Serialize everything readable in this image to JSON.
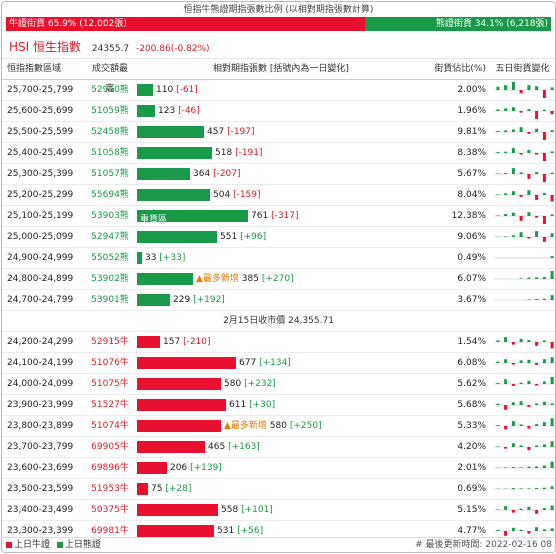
{
  "ratio": {
    "title": "恒指牛熊證期指張數比例 (以相對期指張數計算)",
    "bull_label": "牛證街貨 65.9% (12,002張)",
    "bear_label": "熊證街貨 34.1% (6,218張)",
    "bull_fraction": 0.659
  },
  "index": {
    "name": "HSI 恒生指數",
    "value": "24355.7",
    "change": "-200.86(-0.82%)"
  },
  "header": {
    "range": "恒指指數區域",
    "code": "成交額最高",
    "bar": "相對期指張數 [括號內為一日變化]",
    "pct": "街貨佔比(%)",
    "chart": "五日街貨變化"
  },
  "bear_rows": [
    {
      "range": "25,700-25,799",
      "code": "52950熊",
      "value": "110",
      "change": "[-61]",
      "chg_sign": "neg",
      "pct": "2.00%",
      "bar_frac": 0.055,
      "tag": "",
      "spark": [
        1,
        1.5,
        2.5,
        -1,
        1.5,
        1.2,
        -2.5,
        0.8
      ]
    },
    {
      "range": "25,600-25,699",
      "code": "51059熊",
      "value": "123",
      "change": "[-46]",
      "chg_sign": "neg",
      "pct": "1.96%",
      "bar_frac": 0.062,
      "tag": "",
      "spark": [
        0.5,
        0.8,
        1.2,
        -0.5,
        0.6,
        -2.5,
        0.4,
        -1.0
      ]
    },
    {
      "range": "25,500-25,599",
      "code": "52458熊",
      "value": "457",
      "change": "[-197]",
      "chg_sign": "neg",
      "pct": "9.81%",
      "bar_frac": 0.23,
      "tag": "",
      "spark": [
        0.3,
        0.5,
        0.8,
        1.5,
        -0.6,
        1,
        -2.5,
        0.6
      ]
    },
    {
      "range": "25,400-25,499",
      "code": "51058熊",
      "value": "518",
      "change": "[-191]",
      "chg_sign": "neg",
      "pct": "8.38%",
      "bar_frac": 0.26,
      "tag": "",
      "spark": [
        0.3,
        0.4,
        1.5,
        -0.5,
        1,
        -0.5,
        -2.5,
        0.5
      ]
    },
    {
      "range": "25,300-25,399",
      "code": "51057熊",
      "value": "364",
      "change": "[-207]",
      "chg_sign": "neg",
      "pct": "5.67%",
      "bar_frac": 0.183,
      "tag": "",
      "spark": [
        0.2,
        0.3,
        1.8,
        0.5,
        -1.5,
        0.6,
        -2.5,
        0.4
      ]
    },
    {
      "range": "25,200-25,299",
      "code": "55694熊",
      "value": "504",
      "change": "[-159]",
      "chg_sign": "neg",
      "pct": "8.04%",
      "bar_frac": 0.253,
      "tag": "",
      "spark": [
        0.2,
        0.5,
        1.2,
        -0.6,
        1.5,
        -1.5,
        0.6,
        -2
      ]
    },
    {
      "range": "25,100-25,199",
      "code": "53903熊",
      "value": "761",
      "change": "[-317]",
      "chg_sign": "neg",
      "pct": "12.38%",
      "bar_frac": 0.382,
      "tag": "重貨區",
      "spark": [
        0.2,
        0.6,
        1.0,
        -1.5,
        1.2,
        -0.5,
        -2.5,
        0.5
      ]
    },
    {
      "range": "25,000-25,099",
      "code": "52947熊",
      "value": "551",
      "change": "[+96]",
      "chg_sign": "pos",
      "pct": "9.06%",
      "bar_frac": 0.277,
      "tag": "",
      "spark": [
        0.1,
        0.2,
        0.5,
        1.5,
        -0.5,
        1.8,
        -1.5,
        1.2
      ]
    },
    {
      "range": "24,900-24,999",
      "code": "55052熊",
      "value": "33",
      "change": "[+33]",
      "chg_sign": "pos",
      "pct": "0.49%",
      "bar_frac": 0.017,
      "tag": "",
      "spark": [
        0,
        0,
        0,
        0,
        0,
        0,
        0,
        0.6
      ]
    },
    {
      "range": "24,800-24,899",
      "code": "53902熊",
      "value": "385",
      "change": "[+270]",
      "chg_sign": "pos",
      "pct": "6.07%",
      "bar_frac": 0.193,
      "tag": "▲最多新增",
      "spark": [
        0,
        0,
        0,
        0.2,
        0.4,
        0.5,
        0.6,
        2.5
      ]
    },
    {
      "range": "24,700-24,799",
      "code": "53901熊",
      "value": "229",
      "change": "[+192]",
      "chg_sign": "pos",
      "pct": "3.67%",
      "bar_frac": 0.115,
      "tag": "",
      "spark": [
        0,
        0,
        0,
        0,
        0.2,
        0.3,
        0.4,
        1.5
      ]
    }
  ],
  "mid_label": "2月15日收市價 24,355.71",
  "bull_rows": [
    {
      "range": "24,200-24,299",
      "code": "52915牛",
      "value": "157",
      "change": "[-210]",
      "chg_sign": "neg",
      "pct": "1.54%",
      "bar_frac": 0.079,
      "tag": "",
      "spark": [
        0.5,
        1.5,
        -0.8,
        1,
        0.6,
        -1.2,
        0.5,
        -2
      ]
    },
    {
      "range": "24,100-24,199",
      "code": "51076牛",
      "value": "677",
      "change": "[+134]",
      "chg_sign": "pos",
      "pct": "6.08%",
      "bar_frac": 0.34,
      "tag": "",
      "spark": [
        0.4,
        1.2,
        -0.5,
        0.8,
        1.0,
        -0.6,
        1.2,
        1.8
      ]
    },
    {
      "range": "24,000-24,099",
      "code": "51075牛",
      "value": "580",
      "change": "[+232]",
      "chg_sign": "pos",
      "pct": "5.62%",
      "bar_frac": 0.291,
      "tag": "",
      "spark": [
        0.3,
        1.5,
        -0.6,
        0.4,
        1.0,
        -0.5,
        0.8,
        2.2
      ]
    },
    {
      "range": "23,900-23,999",
      "code": "51527牛",
      "value": "611",
      "change": "[+30]",
      "chg_sign": "pos",
      "pct": "5.68%",
      "bar_frac": 0.307,
      "tag": "",
      "spark": [
        0.4,
        -1.5,
        0.8,
        1.2,
        -0.6,
        0.5,
        1.0,
        0.5
      ]
    },
    {
      "range": "23,800-23,899",
      "code": "51074牛",
      "value": "580",
      "change": "[+250]",
      "chg_sign": "pos",
      "pct": "5.33%",
      "bar_frac": 0.291,
      "tag": "▲最多新增",
      "spark": [
        0.3,
        -1.0,
        1.5,
        0.5,
        -0.8,
        0.6,
        1.2,
        2.4
      ]
    },
    {
      "range": "23,700-23,799",
      "code": "69905牛",
      "value": "465",
      "change": "[+163]",
      "chg_sign": "pos",
      "pct": "4.20%",
      "bar_frac": 0.233,
      "tag": "",
      "spark": [
        0.2,
        -0.5,
        1.2,
        0.5,
        -1.0,
        0.5,
        0.8,
        1.8
      ]
    },
    {
      "range": "23,600-23,699",
      "code": "69896牛",
      "value": "206",
      "change": "[+139]",
      "chg_sign": "pos",
      "pct": "2.01%",
      "bar_frac": 0.104,
      "tag": "",
      "spark": [
        0.1,
        0.2,
        0.3,
        0.2,
        0.4,
        0.5,
        0.8,
        2.0
      ]
    },
    {
      "range": "23,500-23,599",
      "code": "51953牛",
      "value": "75",
      "change": "[+28]",
      "chg_sign": "pos",
      "pct": "0.69%",
      "bar_frac": 0.038,
      "tag": "",
      "spark": [
        0.1,
        0.1,
        0.3,
        0.2,
        0.2,
        0.3,
        0.4,
        0.8
      ]
    },
    {
      "range": "23,400-23,499",
      "code": "50375牛",
      "value": "558",
      "change": "[+101]",
      "chg_sign": "pos",
      "pct": "5.15%",
      "bar_frac": 0.28,
      "tag": "",
      "spark": [
        0.2,
        1.2,
        -0.8,
        0.4,
        1.0,
        -1.2,
        0.6,
        1.4
      ]
    },
    {
      "range": "23,300-23,399",
      "code": "69981牛",
      "value": "531",
      "change": "[+56]",
      "chg_sign": "pos",
      "pct": "4.77%",
      "bar_frac": 0.267,
      "tag": "",
      "spark": [
        0.3,
        -1.5,
        1.0,
        0.4,
        -0.8,
        1.2,
        0.5,
        0.8
      ]
    }
  ],
  "footer": {
    "bull_legend": "上日牛證",
    "bear_legend": "上日熊證",
    "update_label": "# 最後更新時間: 2022-02-16 08"
  },
  "colors": {
    "bull": "#e8102e",
    "bear": "#189a48",
    "orange": "#e07b00"
  }
}
